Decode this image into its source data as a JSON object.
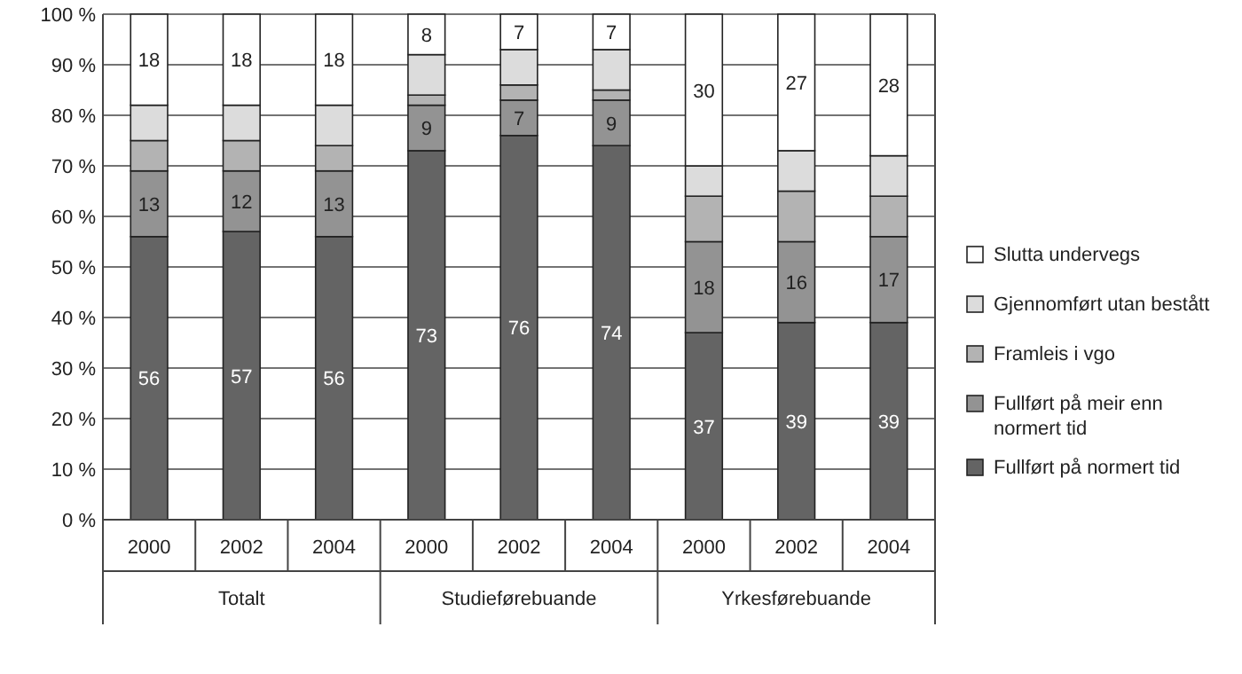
{
  "chart_data": {
    "type": "bar",
    "stacked": true,
    "categories": [
      "2000",
      "2002",
      "2004",
      "2000",
      "2002",
      "2004",
      "2000",
      "2002",
      "2004"
    ],
    "annotations": [
      "Totalt",
      "Studieførebuande",
      "Yrkesførebuande"
    ],
    "series": [
      {
        "name": "Fullført på normert tid",
        "color": "#646464",
        "values": [
          56,
          57,
          56,
          73,
          76,
          74,
          37,
          39,
          39
        ],
        "value_labels": [
          "56",
          "57",
          "56",
          "73",
          "76",
          "74",
          "37",
          "39",
          "39"
        ]
      },
      {
        "name": "Fullført på meir enn normert tid",
        "color": "#939393",
        "values": [
          13,
          12,
          13,
          9,
          7,
          9,
          18,
          16,
          17
        ],
        "value_labels": [
          "13",
          "12",
          "13",
          "9",
          "7",
          "9",
          "18",
          "16",
          "17"
        ]
      },
      {
        "name": "Framleis i vgo",
        "color": "#b3b3b3",
        "values": [
          6,
          6,
          5,
          2,
          3,
          2,
          9,
          10,
          8
        ],
        "value_labels": [
          null,
          null,
          null,
          null,
          null,
          null,
          null,
          null,
          null
        ]
      },
      {
        "name": "Gjennomført utan bestått",
        "color": "#dcdcdc",
        "values": [
          7,
          7,
          8,
          8,
          7,
          8,
          6,
          8,
          8
        ],
        "value_labels": [
          null,
          null,
          null,
          null,
          null,
          null,
          null,
          null,
          null
        ]
      },
      {
        "name": "Slutta undervegs",
        "color": "#ffffff",
        "values": [
          18,
          18,
          18,
          8,
          7,
          7,
          30,
          27,
          28
        ],
        "value_labels": [
          "18",
          "18",
          "18",
          "8",
          "7",
          "7",
          "30",
          "27",
          "28"
        ]
      }
    ],
    "ylim": [
      0,
      100
    ],
    "yticks": [
      {
        "value": 0,
        "label": "0 %"
      },
      {
        "value": 10,
        "label": "10 %"
      },
      {
        "value": 20,
        "label": "20 %"
      },
      {
        "value": 30,
        "label": "30 %"
      },
      {
        "value": 40,
        "label": "40 %"
      },
      {
        "value": 50,
        "label": "50 %"
      },
      {
        "value": 60,
        "label": "60 %"
      },
      {
        "value": 70,
        "label": "70 %"
      },
      {
        "value": 80,
        "label": "80 %"
      },
      {
        "value": 90,
        "label": "90 %"
      },
      {
        "value": 100,
        "label": "100 %"
      }
    ],
    "grid": "y",
    "legend": "right"
  }
}
